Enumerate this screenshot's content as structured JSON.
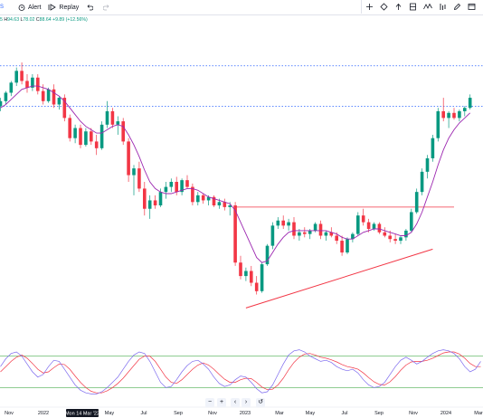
{
  "toolbar": {
    "partial_icon_text": "S",
    "alert_label": "Alert",
    "replay_label": "Replay"
  },
  "ohlc": {
    "partial": "5",
    "h_label": "H",
    "h_value": "94.63",
    "l_label": "L",
    "l_value": "78.02",
    "c_label": "C",
    "c_value": "88.64",
    "change": "+9.89 (+12.56%)"
  },
  "drawing_tools": [
    "add-text-icon",
    "diamond-icon",
    "arrow-up-icon",
    "long-position-icon",
    "zigzag-icon",
    "bar-chart-icon",
    "pencil-icon",
    "window-icon"
  ],
  "navigation": {
    "zoom_out": "−",
    "zoom_in": "+",
    "scroll_left": "‹",
    "scroll_right": "›",
    "reset": "↺"
  },
  "x_axis": {
    "labels": [
      "Nov",
      "2022",
      "May",
      "Jul",
      "Sep",
      "Nov",
      "2023",
      "Mar",
      "May",
      "Jul",
      "Sep",
      "Nov",
      "2024",
      "Mar"
    ],
    "crosshair_label": "Mon 14 Mar '22"
  },
  "colors": {
    "up": "#089981",
    "down": "#f23645",
    "ma": "#9c27b0",
    "level": "#2962ff",
    "resistance": "#f23645",
    "support": "#f23645",
    "osc_fast": "#7b68ee",
    "osc_slow": "#f23645",
    "osc_band": "#4caf50"
  },
  "chart_data": {
    "type": "candlestick",
    "interval": "weekly",
    "x_start": "2021-10-25",
    "candles": [
      [
        96.5,
        99.0,
        95.0,
        98.0
      ],
      [
        98.0,
        101.0,
        97.0,
        100.5
      ],
      [
        100.5,
        104.0,
        99.5,
        103.5
      ],
      [
        103.5,
        108.0,
        102.5,
        107.0
      ],
      [
        107.0,
        109.5,
        103.0,
        104.0
      ],
      [
        104.0,
        106.0,
        100.5,
        102.0
      ],
      [
        102.0,
        106.0,
        101.0,
        105.0
      ],
      [
        105.0,
        106.0,
        100.0,
        101.0
      ],
      [
        101.0,
        103.0,
        97.0,
        98.0
      ],
      [
        98.0,
        102.0,
        97.5,
        101.5
      ],
      [
        101.5,
        103.0,
        96.0,
        97.0
      ],
      [
        97.0,
        99.5,
        95.5,
        99.0
      ],
      [
        99.0,
        100.0,
        92.0,
        93.0
      ],
      [
        93.0,
        94.0,
        86.0,
        87.0
      ],
      [
        87.0,
        91.0,
        85.5,
        90.0
      ],
      [
        90.0,
        91.0,
        84.0,
        85.0
      ],
      [
        85.0,
        90.0,
        84.5,
        89.0
      ],
      [
        89.0,
        90.0,
        85.0,
        86.0
      ],
      [
        86.0,
        88.0,
        82.0,
        84.0
      ],
      [
        84.0,
        92.0,
        83.5,
        91.0
      ],
      [
        91.0,
        98.0,
        90.0,
        95.0
      ],
      [
        95.0,
        96.0,
        90.0,
        91.0
      ],
      [
        91.0,
        93.5,
        88.0,
        92.0
      ],
      [
        92.0,
        93.0,
        85.0,
        86.0
      ],
      [
        86.0,
        87.0,
        74.0,
        76.0
      ],
      [
        76.0,
        79.0,
        70.0,
        78.0
      ],
      [
        78.0,
        80.0,
        71.0,
        72.0
      ],
      [
        72.0,
        74.0,
        64.0,
        66.0
      ],
      [
        66.0,
        70.0,
        63.0,
        68.5
      ],
      [
        68.5,
        70.0,
        66.0,
        67.0
      ],
      [
        67.0,
        72.0,
        66.5,
        71.0
      ],
      [
        71.0,
        74.0,
        69.0,
        72.5
      ],
      [
        72.5,
        75.0,
        71.0,
        74.0
      ],
      [
        74.0,
        75.5,
        70.0,
        71.0
      ],
      [
        71.0,
        75.0,
        70.0,
        74.5
      ],
      [
        74.5,
        76.0,
        72.0,
        72.5
      ],
      [
        72.5,
        73.5,
        67.0,
        68.0
      ],
      [
        68.0,
        71.0,
        67.0,
        70.0
      ],
      [
        70.0,
        70.5,
        67.5,
        68.5
      ],
      [
        68.5,
        70.0,
        67.0,
        69.5
      ],
      [
        69.5,
        70.0,
        66.5,
        67.0
      ],
      [
        67.0,
        69.0,
        66.0,
        68.0
      ],
      [
        68.0,
        69.0,
        65.5,
        66.5
      ],
      [
        66.5,
        68.0,
        64.0,
        67.0
      ],
      [
        67.0,
        68.0,
        49.0,
        50.0
      ],
      [
        50.0,
        52.0,
        45.0,
        46.0
      ],
      [
        46.0,
        48.5,
        44.5,
        47.5
      ],
      [
        47.5,
        49.0,
        43.0,
        44.0
      ],
      [
        44.0,
        46.0,
        40.5,
        41.5
      ],
      [
        41.5,
        50.0,
        41.0,
        49.5
      ],
      [
        49.5,
        55.5,
        49.0,
        55.0
      ],
      [
        55.0,
        62.0,
        54.0,
        61.0
      ],
      [
        61.0,
        63.5,
        60.0,
        62.5
      ],
      [
        62.5,
        64.0,
        60.0,
        61.0
      ],
      [
        61.0,
        63.0,
        59.5,
        62.0
      ],
      [
        62.0,
        63.5,
        57.0,
        58.0
      ],
      [
        58.0,
        60.0,
        56.5,
        59.0
      ],
      [
        59.0,
        60.5,
        57.5,
        58.5
      ],
      [
        58.5,
        60.0,
        57.0,
        59.5
      ],
      [
        59.5,
        62.0,
        59.0,
        61.5
      ],
      [
        61.5,
        62.5,
        57.0,
        58.0
      ],
      [
        58.0,
        59.5,
        56.5,
        59.0
      ],
      [
        59.0,
        60.5,
        57.5,
        58.0
      ],
      [
        58.0,
        59.0,
        55.5,
        56.5
      ],
      [
        56.5,
        58.0,
        52.0,
        53.0
      ],
      [
        53.0,
        57.5,
        52.5,
        57.0
      ],
      [
        57.0,
        59.0,
        56.0,
        58.5
      ],
      [
        58.5,
        65.0,
        58.0,
        64.0
      ],
      [
        64.0,
        66.0,
        61.0,
        62.0
      ],
      [
        62.0,
        63.0,
        59.0,
        60.0
      ],
      [
        60.0,
        62.0,
        59.5,
        61.5
      ],
      [
        61.5,
        62.0,
        58.5,
        59.0
      ],
      [
        59.0,
        60.5,
        57.5,
        58.0
      ],
      [
        58.0,
        59.5,
        56.0,
        57.0
      ],
      [
        57.0,
        58.5,
        55.5,
        56.5
      ],
      [
        56.5,
        58.0,
        55.5,
        57.5
      ],
      [
        57.5,
        60.0,
        56.5,
        59.5
      ],
      [
        59.5,
        66.0,
        59.0,
        65.0
      ],
      [
        65.0,
        72.0,
        64.5,
        71.0
      ],
      [
        71.0,
        78.0,
        70.0,
        77.0
      ],
      [
        77.0,
        82.0,
        75.0,
        81.0
      ],
      [
        81.0,
        88.0,
        80.0,
        87.0
      ],
      [
        87.0,
        96.0,
        86.0,
        95.0
      ],
      [
        95.0,
        99.0,
        92.0,
        93.0
      ],
      [
        93.0,
        95.0,
        90.0,
        94.5
      ],
      [
        94.5,
        96.0,
        92.5,
        93.0
      ],
      [
        93.0,
        95.5,
        92.0,
        95.0
      ],
      [
        95.0,
        96.5,
        93.5,
        96.0
      ],
      [
        96.0,
        100.0,
        95.5,
        99.0
      ]
    ],
    "moving_average": [
      96,
      97,
      98.5,
      100,
      101.5,
      102,
      102.5,
      102.5,
      102,
      101.5,
      100.5,
      99.5,
      98,
      96,
      94,
      92,
      90.5,
      89.5,
      88.5,
      88.5,
      89.5,
      90.5,
      91,
      90.5,
      88,
      85,
      81.5,
      77.5,
      74,
      72,
      71,
      70.5,
      70.5,
      71,
      71.5,
      72,
      72,
      71.5,
      70.5,
      69.5,
      69,
      68.5,
      68,
      67.5,
      65.5,
      62,
      58.5,
      55,
      51.5,
      50,
      50.5,
      53,
      55.5,
      57.5,
      59,
      59.5,
      59.5,
      59.5,
      59.5,
      59.5,
      59.5,
      59.5,
      59,
      58.5,
      57.5,
      57,
      57,
      58,
      59,
      59.5,
      60,
      60,
      59.5,
      59,
      58.5,
      58,
      58,
      59,
      61.5,
      65,
      69.5,
      74,
      79,
      83.5,
      87,
      89.5,
      91.5,
      93,
      94.5
    ],
    "horizontal_levels": [
      {
        "price": 108.5,
        "style": "dotted",
        "color": "#2962ff"
      },
      {
        "price": 96.5,
        "style": "dotted",
        "color": "#2962ff"
      },
      {
        "price": 66.5,
        "style": "solid",
        "color": "#f23645",
        "start_bar": 44,
        "end_bar": 85
      }
    ],
    "trendline": {
      "start_bar": 46,
      "start_price": 36.5,
      "end_bar": 81,
      "end_price": 54.0,
      "color": "#f23645"
    },
    "y_range": [
      28,
      120
    ],
    "oscillator": {
      "upper_band": 80,
      "lower_band": 20,
      "fast": [
        60,
        75,
        85,
        88,
        80,
        65,
        50,
        40,
        45,
        60,
        72,
        70,
        55,
        40,
        25,
        15,
        10,
        8,
        8,
        12,
        20,
        30,
        40,
        55,
        70,
        82,
        88,
        85,
        70,
        50,
        30,
        20,
        22,
        35,
        50,
        62,
        70,
        72,
        65,
        55,
        40,
        28,
        22,
        25,
        35,
        42,
        40,
        30,
        18,
        10,
        12,
        25,
        45,
        65,
        82,
        90,
        92,
        88,
        80,
        75,
        70,
        72,
        68,
        60,
        55,
        52,
        55,
        48,
        35,
        25,
        20,
        22,
        30,
        45,
        60,
        72,
        78,
        72,
        65,
        70,
        78,
        85,
        90,
        92,
        90,
        85,
        75,
        60,
        50,
        55,
        70
      ],
      "slow": [
        50,
        60,
        70,
        78,
        82,
        76,
        66,
        55,
        48,
        50,
        58,
        65,
        64,
        55,
        42,
        30,
        20,
        13,
        10,
        10,
        14,
        20,
        28,
        38,
        50,
        62,
        74,
        80,
        80,
        70,
        55,
        40,
        30,
        28,
        35,
        45,
        55,
        63,
        67,
        63,
        55,
        45,
        36,
        30,
        30,
        35,
        38,
        37,
        30,
        21,
        16,
        17,
        25,
        38,
        54,
        68,
        78,
        84,
        85,
        82,
        78,
        76,
        73,
        69,
        64,
        60,
        58,
        55,
        48,
        39,
        31,
        26,
        25,
        31,
        41,
        53,
        63,
        69,
        70,
        70,
        72,
        76,
        81,
        86,
        88,
        88,
        84,
        76,
        66,
        60,
        60
      ]
    }
  }
}
